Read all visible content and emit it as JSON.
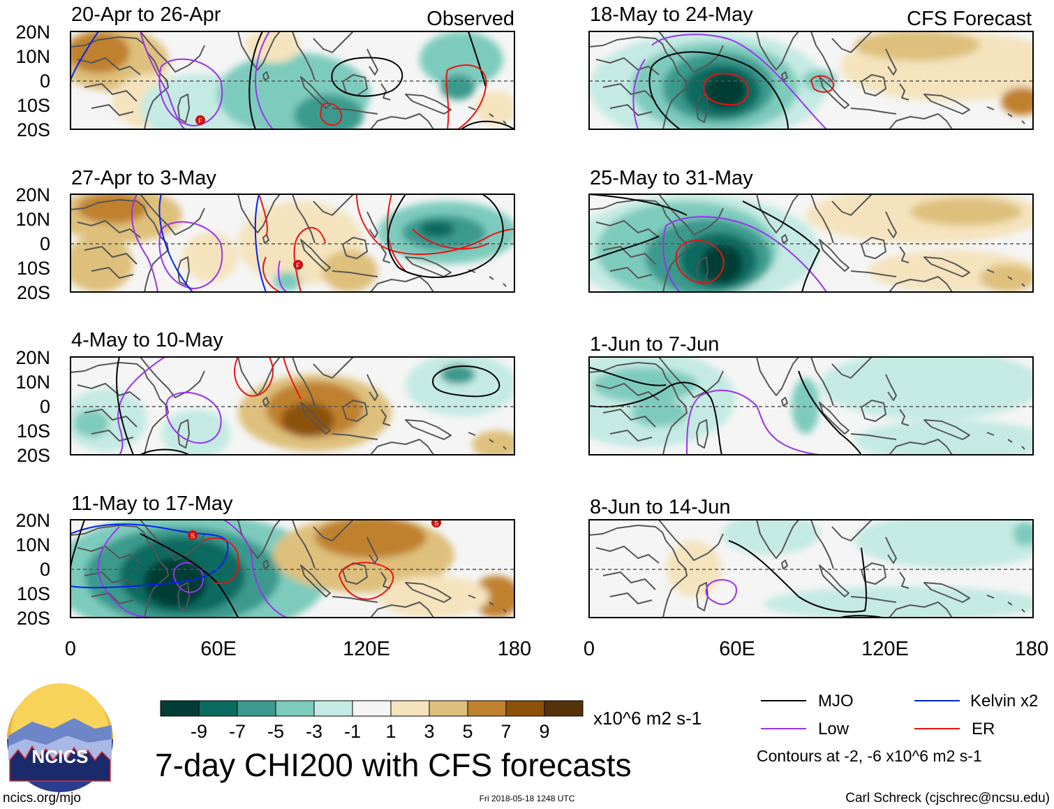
{
  "figure": {
    "title": "7-day CHI200 with CFS forecasts",
    "units": "x10^6 m2 s-1",
    "source_url": "ncics.org/mjo",
    "timestamp": "Fri 2018-05-18 1248 UTC",
    "author": "Carl Schreck (cjschrec@ncsu.edu)",
    "logo_text": "NCICS",
    "observed_label": "Observed",
    "forecast_label": "CFS Forecast",
    "contour_note": "Contours at -2, -6 x10^6 m2 s-1"
  },
  "axes": {
    "lat_labels": [
      "20N",
      "10N",
      "0",
      "10S",
      "20S"
    ],
    "lon_labels": [
      "0",
      "60E",
      "120E",
      "180"
    ]
  },
  "colorbar": {
    "labels": [
      "-9",
      "-7",
      "-5",
      "-3",
      "-1",
      "1",
      "3",
      "5",
      "7",
      "9"
    ],
    "colors": [
      "#013d36",
      "#0a6b60",
      "#3b9a8d",
      "#7dcbbd",
      "#c4eae3",
      "#f5f5f5",
      "#f4e3bd",
      "#dec07c",
      "#bf812d",
      "#8c520a",
      "#553207"
    ]
  },
  "legend": [
    {
      "label": "MJO",
      "color": "#000000"
    },
    {
      "label": "Kelvin x2",
      "color": "#0022ee"
    },
    {
      "label": "Low",
      "color": "#9933ee"
    },
    {
      "label": "ER",
      "color": "#ee1111"
    }
  ],
  "panels": [
    {
      "title": "20-Apr to 26-Apr"
    },
    {
      "title": "27-Apr to 3-May"
    },
    {
      "title": "4-May to 10-May"
    },
    {
      "title": "11-May to 17-May"
    },
    {
      "title": "18-May to 24-May"
    },
    {
      "title": "25-May to 31-May"
    },
    {
      "title": "1-Jun to 7-Jun"
    },
    {
      "title": "8-Jun to 14-Jun"
    }
  ],
  "storm_markers": [
    "F",
    "F",
    "S",
    "S"
  ]
}
